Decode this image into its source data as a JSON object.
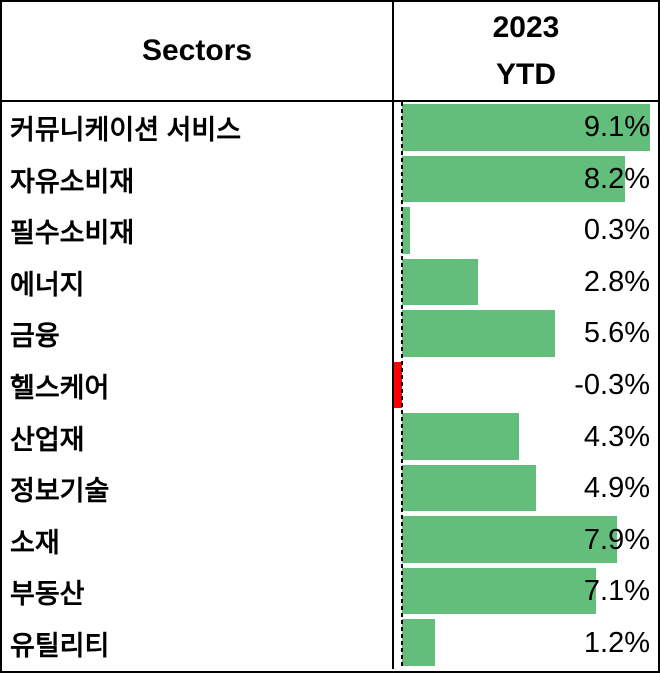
{
  "header": {
    "sectors_label": "Sectors",
    "year_label": "2023",
    "period_label": "YTD"
  },
  "chart_data": {
    "type": "bar",
    "orientation": "horizontal",
    "title": "2023 YTD",
    "categories": [
      "커뮤니케이션 서비스",
      "자유소비재",
      "필수소비재",
      "에너지",
      "금융",
      "헬스케어",
      "산업재",
      "정보기술",
      "소재",
      "부동산",
      "유틸리티"
    ],
    "values": [
      9.1,
      8.2,
      0.3,
      2.8,
      5.6,
      -0.3,
      4.3,
      4.9,
      7.9,
      7.1,
      1.2
    ],
    "value_labels": [
      "9.1%",
      "8.2%",
      "0.3%",
      "2.8%",
      "5.6%",
      "-0.3%",
      "4.3%",
      "4.9%",
      "7.9%",
      "7.1%",
      "1.2%"
    ],
    "xlim": [
      -0.3,
      9.1
    ],
    "zero_axis": "dashed",
    "grid": "off",
    "positive_color": "#63BE7B",
    "negative_color": "#FF0000",
    "text_color": "#000000",
    "border_color": "#000000"
  }
}
